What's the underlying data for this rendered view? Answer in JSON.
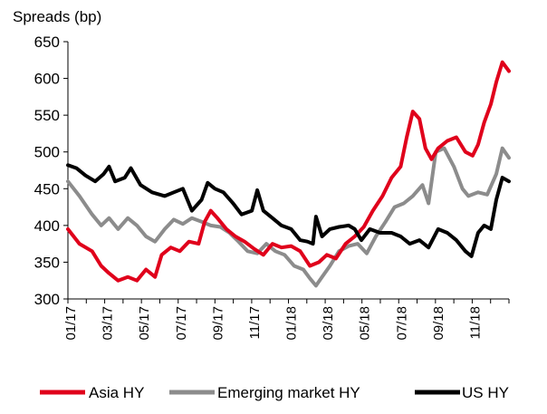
{
  "chart_data": {
    "type": "line",
    "ylabel": "Spreads (bp)",
    "ylim": [
      300,
      650
    ],
    "yticks": [
      300,
      350,
      400,
      450,
      500,
      550,
      600,
      650
    ],
    "xlim": [
      "2017-01-01",
      "2018-12-31"
    ],
    "xticks": [
      "01/17",
      "03/17",
      "05/17",
      "07/17",
      "09/17",
      "11/17",
      "01/18",
      "03/18",
      "05/18",
      "07/18",
      "09/18",
      "11/18"
    ],
    "grid": false,
    "legend_position": "bottom",
    "series": [
      {
        "name": "Asia HY",
        "color": "#e0001b",
        "points": [
          [
            "2017-01-01",
            395
          ],
          [
            "2017-01-20",
            375
          ],
          [
            "2017-02-10",
            365
          ],
          [
            "2017-02-25",
            345
          ],
          [
            "2017-03-10",
            335
          ],
          [
            "2017-03-25",
            325
          ],
          [
            "2017-04-10",
            330
          ],
          [
            "2017-04-25",
            325
          ],
          [
            "2017-05-10",
            340
          ],
          [
            "2017-05-25",
            330
          ],
          [
            "2017-06-05",
            360
          ],
          [
            "2017-06-20",
            370
          ],
          [
            "2017-07-05",
            365
          ],
          [
            "2017-07-20",
            378
          ],
          [
            "2017-08-05",
            375
          ],
          [
            "2017-08-15",
            405
          ],
          [
            "2017-08-25",
            420
          ],
          [
            "2017-09-05",
            410
          ],
          [
            "2017-09-20",
            395
          ],
          [
            "2017-10-05",
            385
          ],
          [
            "2017-10-20",
            378
          ],
          [
            "2017-11-05",
            368
          ],
          [
            "2017-11-20",
            360
          ],
          [
            "2017-12-05",
            375
          ],
          [
            "2017-12-20",
            370
          ],
          [
            "2018-01-05",
            372
          ],
          [
            "2018-01-20",
            365
          ],
          [
            "2018-02-05",
            345
          ],
          [
            "2018-02-20",
            350
          ],
          [
            "2018-03-05",
            360
          ],
          [
            "2018-03-20",
            355
          ],
          [
            "2018-04-05",
            375
          ],
          [
            "2018-04-20",
            385
          ],
          [
            "2018-05-05",
            398
          ],
          [
            "2018-05-20",
            420
          ],
          [
            "2018-06-05",
            440
          ],
          [
            "2018-06-20",
            465
          ],
          [
            "2018-07-05",
            480
          ],
          [
            "2018-07-15",
            520
          ],
          [
            "2018-07-25",
            555
          ],
          [
            "2018-08-05",
            545
          ],
          [
            "2018-08-15",
            505
          ],
          [
            "2018-08-25",
            490
          ],
          [
            "2018-09-05",
            505
          ],
          [
            "2018-09-20",
            515
          ],
          [
            "2018-10-05",
            520
          ],
          [
            "2018-10-20",
            500
          ],
          [
            "2018-11-01",
            495
          ],
          [
            "2018-11-10",
            510
          ],
          [
            "2018-11-20",
            540
          ],
          [
            "2018-12-01",
            565
          ],
          [
            "2018-12-10",
            595
          ],
          [
            "2018-12-20",
            622
          ],
          [
            "2018-12-31",
            610
          ]
        ]
      },
      {
        "name": "Emerging market HY",
        "color": "#8c8c8c",
        "points": [
          [
            "2017-01-01",
            460
          ],
          [
            "2017-01-20",
            440
          ],
          [
            "2017-02-10",
            415
          ],
          [
            "2017-02-25",
            400
          ],
          [
            "2017-03-10",
            410
          ],
          [
            "2017-03-25",
            395
          ],
          [
            "2017-04-10",
            410
          ],
          [
            "2017-04-25",
            400
          ],
          [
            "2017-05-10",
            385
          ],
          [
            "2017-05-25",
            378
          ],
          [
            "2017-06-10",
            395
          ],
          [
            "2017-06-25",
            408
          ],
          [
            "2017-07-10",
            402
          ],
          [
            "2017-07-25",
            410
          ],
          [
            "2017-08-10",
            405
          ],
          [
            "2017-08-25",
            400
          ],
          [
            "2017-09-10",
            398
          ],
          [
            "2017-09-25",
            390
          ],
          [
            "2017-10-10",
            378
          ],
          [
            "2017-10-25",
            365
          ],
          [
            "2017-11-10",
            362
          ],
          [
            "2017-11-25",
            375
          ],
          [
            "2017-12-10",
            365
          ],
          [
            "2017-12-25",
            360
          ],
          [
            "2018-01-10",
            345
          ],
          [
            "2018-01-25",
            340
          ],
          [
            "2018-02-05",
            328
          ],
          [
            "2018-02-15",
            318
          ],
          [
            "2018-02-25",
            330
          ],
          [
            "2018-03-10",
            345
          ],
          [
            "2018-03-25",
            365
          ],
          [
            "2018-04-10",
            372
          ],
          [
            "2018-04-25",
            375
          ],
          [
            "2018-05-10",
            362
          ],
          [
            "2018-05-25",
            385
          ],
          [
            "2018-06-10",
            405
          ],
          [
            "2018-06-25",
            425
          ],
          [
            "2018-07-10",
            430
          ],
          [
            "2018-07-25",
            440
          ],
          [
            "2018-08-10",
            455
          ],
          [
            "2018-08-20",
            430
          ],
          [
            "2018-09-01",
            500
          ],
          [
            "2018-09-15",
            505
          ],
          [
            "2018-10-01",
            480
          ],
          [
            "2018-10-15",
            450
          ],
          [
            "2018-10-25",
            440
          ],
          [
            "2018-11-10",
            445
          ],
          [
            "2018-11-25",
            442
          ],
          [
            "2018-12-10",
            470
          ],
          [
            "2018-12-20",
            505
          ],
          [
            "2018-12-31",
            492
          ]
        ]
      },
      {
        "name": "US HY",
        "color": "#000000",
        "points": [
          [
            "2017-01-01",
            482
          ],
          [
            "2017-01-15",
            478
          ],
          [
            "2017-01-30",
            468
          ],
          [
            "2017-02-15",
            460
          ],
          [
            "2017-03-01",
            470
          ],
          [
            "2017-03-10",
            480
          ],
          [
            "2017-03-20",
            460
          ],
          [
            "2017-04-05",
            465
          ],
          [
            "2017-04-15",
            478
          ],
          [
            "2017-05-01",
            455
          ],
          [
            "2017-05-20",
            445
          ],
          [
            "2017-06-10",
            440
          ],
          [
            "2017-06-25",
            445
          ],
          [
            "2017-07-10",
            450
          ],
          [
            "2017-07-25",
            420
          ],
          [
            "2017-08-10",
            435
          ],
          [
            "2017-08-20",
            458
          ],
          [
            "2017-09-01",
            450
          ],
          [
            "2017-09-15",
            445
          ],
          [
            "2017-10-01",
            430
          ],
          [
            "2017-10-15",
            415
          ],
          [
            "2017-11-01",
            420
          ],
          [
            "2017-11-10",
            448
          ],
          [
            "2017-11-20",
            420
          ],
          [
            "2017-12-05",
            410
          ],
          [
            "2017-12-20",
            400
          ],
          [
            "2018-01-05",
            395
          ],
          [
            "2018-01-20",
            380
          ],
          [
            "2018-02-01",
            378
          ],
          [
            "2018-02-10",
            375
          ],
          [
            "2018-02-15",
            412
          ],
          [
            "2018-02-25",
            385
          ],
          [
            "2018-03-10",
            395
          ],
          [
            "2018-03-25",
            398
          ],
          [
            "2018-04-10",
            400
          ],
          [
            "2018-04-20",
            395
          ],
          [
            "2018-05-01",
            380
          ],
          [
            "2018-05-15",
            395
          ],
          [
            "2018-06-01",
            390
          ],
          [
            "2018-06-20",
            390
          ],
          [
            "2018-07-05",
            385
          ],
          [
            "2018-07-20",
            375
          ],
          [
            "2018-08-05",
            380
          ],
          [
            "2018-08-20",
            370
          ],
          [
            "2018-09-05",
            395
          ],
          [
            "2018-09-20",
            390
          ],
          [
            "2018-10-05",
            380
          ],
          [
            "2018-10-20",
            365
          ],
          [
            "2018-10-30",
            358
          ],
          [
            "2018-11-10",
            390
          ],
          [
            "2018-11-20",
            400
          ],
          [
            "2018-12-01",
            395
          ],
          [
            "2018-12-10",
            435
          ],
          [
            "2018-12-20",
            465
          ],
          [
            "2018-12-31",
            460
          ]
        ]
      }
    ]
  }
}
